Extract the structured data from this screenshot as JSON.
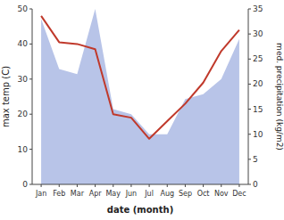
{
  "chart_data": {
    "type": "line",
    "categories": [
      "Jan",
      "Feb",
      "Mar",
      "Apr",
      "May",
      "Jun",
      "Jul",
      "Aug",
      "Sep",
      "Oct",
      "Nov",
      "Dec"
    ],
    "xlabel": "date (month)",
    "ylabel": "max temp (C)",
    "y2label": "med. precipitation (kg/m2)",
    "series": [
      {
        "type": "area",
        "axis": "y2",
        "color": "#b8c4e8",
        "values": [
          33,
          23,
          22,
          35,
          15,
          14,
          10,
          10,
          17,
          18,
          21,
          29
        ]
      },
      {
        "type": "line",
        "color": "#c0392b",
        "values": [
          48,
          40.5,
          40,
          38.5,
          20,
          19,
          13,
          18,
          23,
          29,
          38,
          44
        ]
      }
    ],
    "ylim": [
      0,
      50
    ],
    "yticks": [
      0,
      10,
      20,
      30,
      40,
      50
    ],
    "y2lim": [
      0,
      35
    ],
    "y2ticks": [
      0,
      5,
      10,
      15,
      20,
      25,
      30,
      35
    ],
    "grid": false
  }
}
